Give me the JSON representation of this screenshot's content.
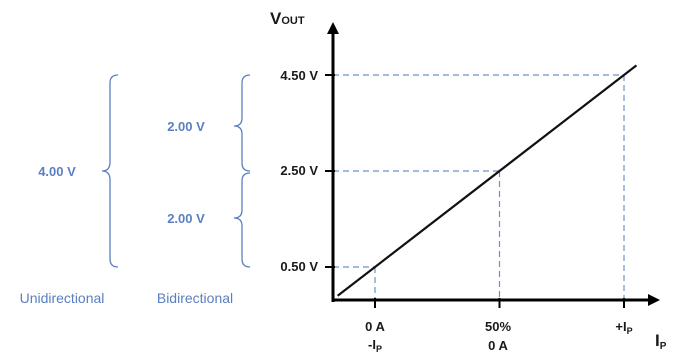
{
  "chart_data": {
    "type": "line",
    "ylabel": {
      "main": "V",
      "sub": "OUT"
    },
    "xlabel": {
      "main": "I",
      "sub": "P"
    },
    "y_ticks": [
      "4.50 V",
      "2.50 V",
      "0.50 V"
    ],
    "y_tick_values": [
      4.5,
      2.5,
      0.5
    ],
    "x_ticks": [
      {
        "x": 0,
        "top": "0 A",
        "bottom": {
          "main": "-I",
          "sub": "P"
        }
      },
      {
        "x": 50,
        "top": "50%",
        "bottom_text": "0 A"
      },
      {
        "x": 100,
        "top": {
          "main": "+I",
          "sub": "P"
        }
      }
    ],
    "series": [
      {
        "x": [
          0,
          50,
          100
        ],
        "y": [
          0.5,
          2.5,
          4.5
        ]
      }
    ],
    "annotations": {
      "bidirectional": {
        "label": "Bidirectional",
        "upper": "2.00 V",
        "lower": "2.00 V"
      },
      "unidirectional": {
        "label": "Unidirectional",
        "span": "4.00 V"
      }
    },
    "colors": {
      "axis": "#000000",
      "guide": "#6e8fc9",
      "annotation": "#5b7fc0",
      "line": "#111111"
    },
    "grid": false
  }
}
